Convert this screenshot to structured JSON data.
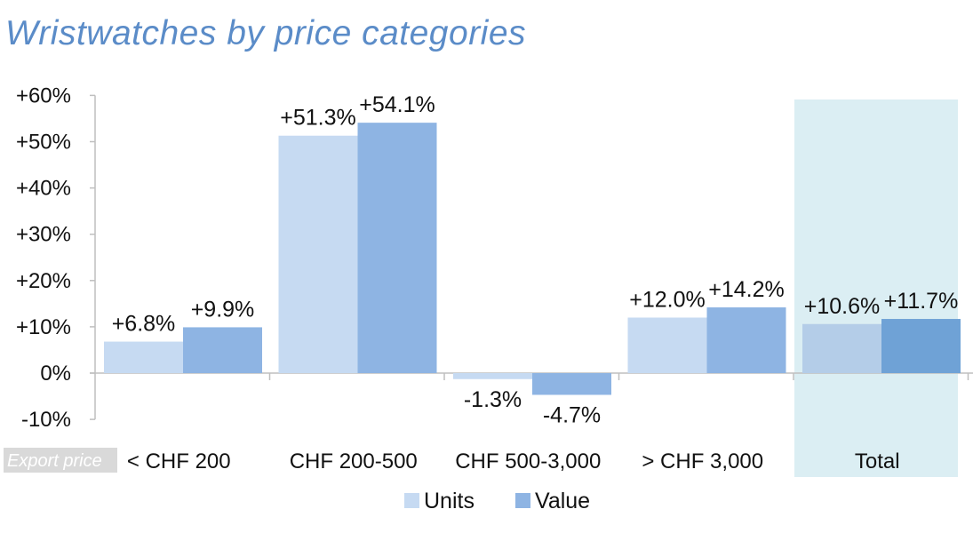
{
  "title": "Wristwatches by price categories",
  "note": "Export price",
  "colors": {
    "units": "#c6daf2",
    "value": "#8eb4e3",
    "highlight_band": "#dbeef3",
    "units_highlight": "#b4cde8",
    "value_highlight": "#6fa2d6",
    "title": "#5b8cc8",
    "axis": "#bfbfbf",
    "note_bg": "#d9d9d9"
  },
  "chart_data": {
    "type": "bar",
    "categories": [
      "< CHF 200",
      "CHF 200-500",
      "CHF 500-3,000",
      "> CHF 3,000",
      "Total"
    ],
    "series": [
      {
        "name": "Units",
        "values": [
          6.8,
          51.3,
          -1.3,
          12.0,
          10.6
        ],
        "labels": [
          "+6.8%",
          "+51.3%",
          "-1.3%",
          "+12.0%",
          "+10.6%"
        ]
      },
      {
        "name": "Value",
        "values": [
          9.9,
          54.1,
          -4.7,
          14.2,
          11.7
        ],
        "labels": [
          "+9.9%",
          "+54.1%",
          "-4.7%",
          "+14.2%",
          "+11.7%"
        ]
      }
    ],
    "yticks": [
      -10,
      0,
      10,
      20,
      30,
      40,
      50,
      60
    ],
    "ytick_labels": [
      "-10%",
      "0%",
      "+10%",
      "+20%",
      "+30%",
      "+40%",
      "+50%",
      "+60%"
    ],
    "ylim": [
      -10,
      60
    ],
    "highlighted_category": "Total",
    "legend": [
      "Units",
      "Value"
    ],
    "legend_position": "bottom",
    "grid": false
  }
}
